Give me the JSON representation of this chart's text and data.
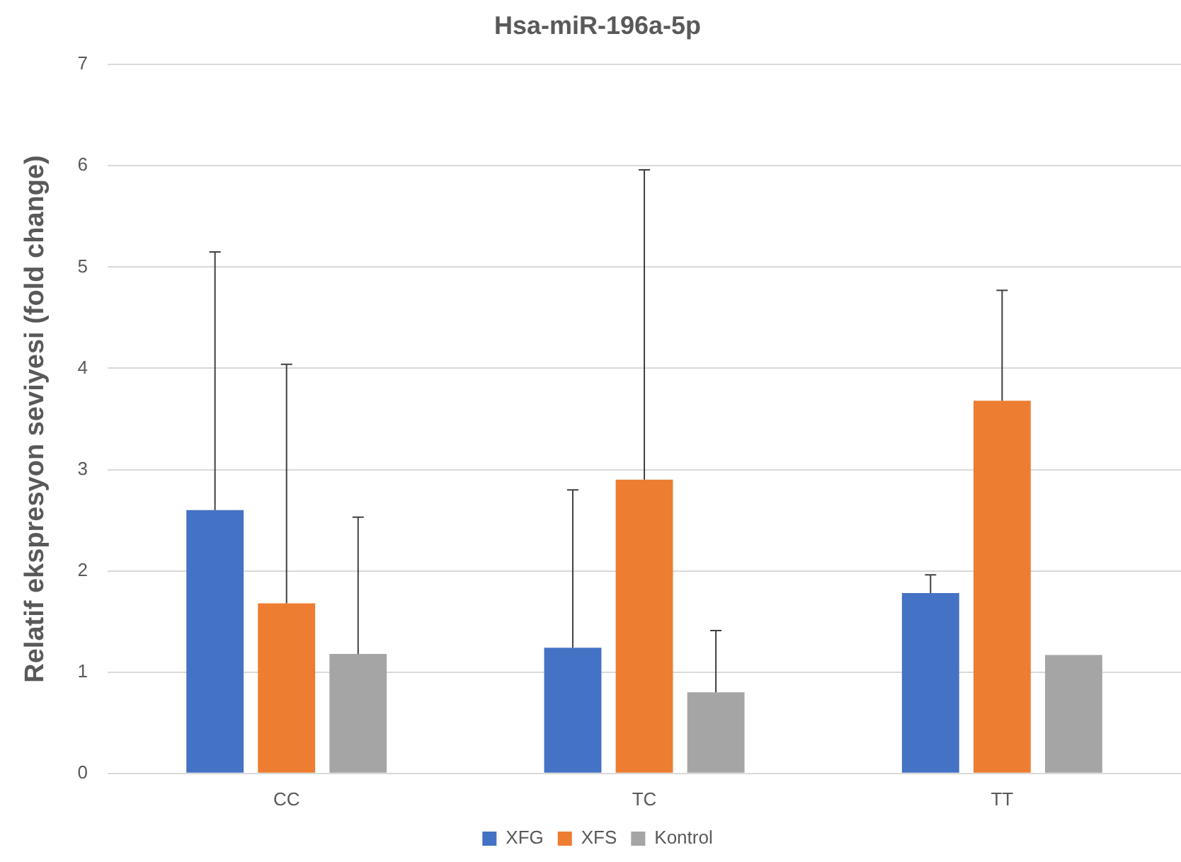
{
  "chart_data": {
    "type": "bar",
    "title": "Hsa-miR-196a-5p",
    "ylabel": "Relatif ekspresyon seviyesi (fold change)",
    "categories": [
      "CC",
      "TC",
      "TT"
    ],
    "series": [
      {
        "name": "XFG",
        "color": "#4472c4",
        "values": [
          2.6,
          1.24,
          1.78
        ],
        "errors": [
          [
            2.6,
            5.15
          ],
          [
            1.24,
            2.8
          ],
          [
            1.78,
            1.96
          ]
        ]
      },
      {
        "name": "XFS",
        "color": "#ed7d31",
        "values": [
          1.68,
          2.9,
          3.68
        ],
        "errors": [
          [
            1.68,
            4.04
          ],
          [
            2.9,
            5.96
          ],
          [
            3.68,
            4.77
          ]
        ]
      },
      {
        "name": "Kontrol",
        "color": "#a5a5a5",
        "values": [
          1.18,
          0.8,
          1.17
        ],
        "errors": [
          [
            1.18,
            2.53
          ],
          [
            0.8,
            1.41
          ],
          null
        ]
      }
    ],
    "ylim": [
      0,
      7
    ],
    "yticks": [
      0,
      1,
      2,
      3,
      4,
      5,
      6,
      7
    ],
    "grid": "y",
    "legend": "bottom"
  }
}
